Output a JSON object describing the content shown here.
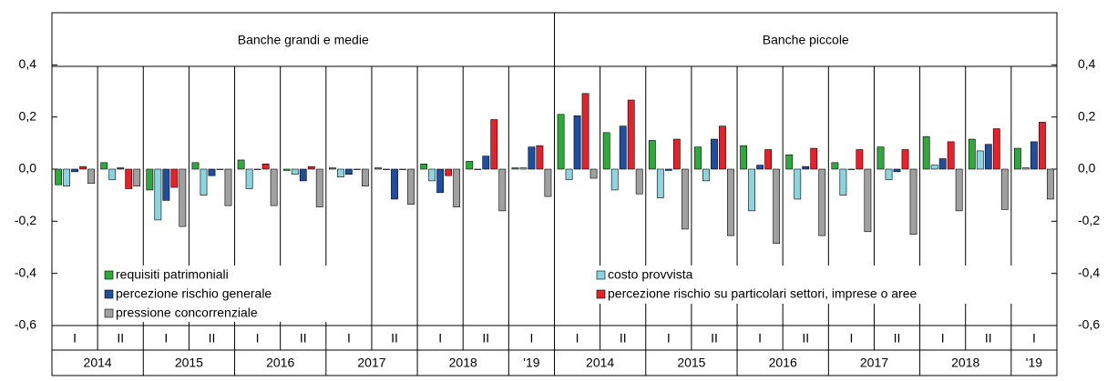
{
  "chart_data": {
    "type": "bar",
    "panels": [
      {
        "title": "Banche grandi e medie"
      },
      {
        "title": "Banche piccole"
      }
    ],
    "categories": [
      "I",
      "II",
      "I",
      "II",
      "I",
      "II",
      "I",
      "II",
      "I",
      "II",
      "I",
      "I",
      "II",
      "I",
      "II",
      "I",
      "II",
      "I",
      "II",
      "I",
      "II",
      "I"
    ],
    "years": [
      "2014",
      "2015",
      "2016",
      "2017",
      "2018",
      "'19",
      "2014",
      "2015",
      "2016",
      "2017",
      "2018",
      "'19"
    ],
    "ylim": [
      -0.6,
      0.6
    ],
    "yticks": [
      {
        "value": -0.6,
        "label": "-0,6"
      },
      {
        "value": -0.4,
        "label": "-0,4"
      },
      {
        "value": -0.2,
        "label": "-0,2"
      },
      {
        "value": 0,
        "label": "0,0"
      },
      {
        "value": 0.2,
        "label": "0,2"
      },
      {
        "value": 0.4,
        "label": "0,4"
      }
    ],
    "series": [
      {
        "name": "requisiti patrimoniali",
        "color": "#2eaa3c",
        "values": [
          -0.06,
          0.025,
          -0.08,
          0.025,
          0.035,
          -0.005,
          0.005,
          0.005,
          0.02,
          0.03,
          0.005,
          0.21,
          0.14,
          0.11,
          0.085,
          0.09,
          0.055,
          0.025,
          0.085,
          0.125,
          0.115,
          0.08
        ]
      },
      {
        "name": "costo provvista",
        "color": "#8dd3e0",
        "values": [
          -0.065,
          -0.04,
          -0.195,
          -0.1,
          -0.075,
          -0.02,
          -0.03,
          0.0,
          -0.045,
          0.0,
          0.005,
          -0.04,
          -0.08,
          -0.11,
          -0.045,
          -0.16,
          -0.115,
          -0.1,
          -0.04,
          0.015,
          0.07,
          0.005
        ]
      },
      {
        "name": "percezione rischio generale",
        "color": "#1f4e9e",
        "values": [
          -0.01,
          0.005,
          -0.12,
          -0.025,
          0.0,
          -0.045,
          -0.02,
          -0.115,
          -0.09,
          0.05,
          0.085,
          0.205,
          0.165,
          -0.005,
          0.115,
          0.015,
          0.01,
          0.0,
          -0.01,
          0.04,
          0.095,
          0.105
        ]
      },
      {
        "name": "percezione rischio su particolari settori, imprese o aree",
        "color": "#e8202a",
        "values": [
          0.01,
          -0.075,
          -0.07,
          0.0,
          0.02,
          0.01,
          0.0,
          0.0,
          -0.025,
          0.19,
          0.09,
          0.29,
          0.265,
          0.115,
          0.165,
          0.075,
          0.08,
          0.075,
          0.075,
          0.105,
          0.155,
          0.18
        ]
      },
      {
        "name": "pressione concorrenziale",
        "color": "#a0a0a0",
        "values": [
          -0.055,
          -0.065,
          -0.22,
          -0.14,
          -0.14,
          -0.145,
          -0.065,
          -0.135,
          -0.145,
          -0.16,
          -0.105,
          -0.035,
          -0.095,
          -0.23,
          -0.255,
          -0.285,
          -0.255,
          -0.24,
          -0.25,
          -0.16,
          -0.155,
          -0.115
        ]
      }
    ]
  }
}
